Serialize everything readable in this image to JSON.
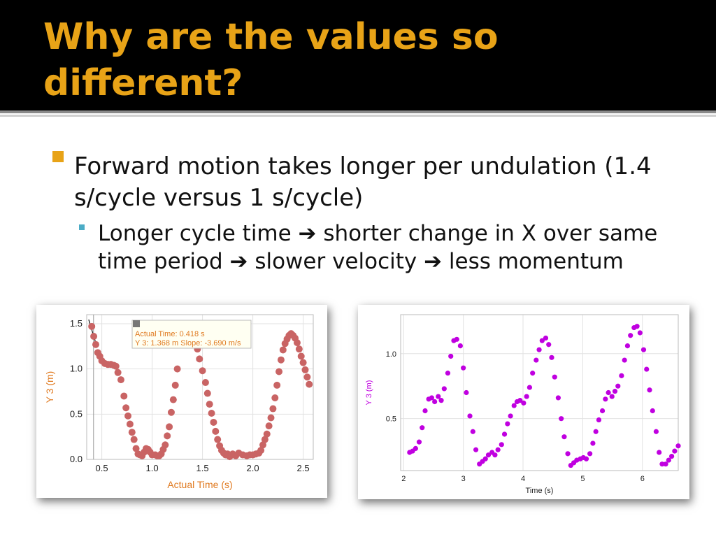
{
  "slide": {
    "title": "Why are the values so different?",
    "bullets": [
      {
        "text": "Forward motion takes longer per undulation (1.4 s/cycle versus 1 s/cycle)"
      },
      {
        "text": "Longer cycle time ➔ shorter change in X over same time period ➔ slower velocity ➔ less momentum"
      }
    ],
    "colors": {
      "title": "#e8a317",
      "title_bar": "#000000",
      "bullet_square": "#e8a317",
      "bullet_small": "#4bacc6"
    }
  },
  "chart_data": [
    {
      "type": "scatter",
      "xlabel": "Actual Time (s)",
      "ylabel": "Y 3 (m)",
      "xlim": [
        0.35,
        2.6
      ],
      "ylim": [
        0.0,
        1.6
      ],
      "xticks": [
        "0.5",
        "1.0",
        "1.5",
        "2.0",
        "2.5"
      ],
      "yticks": [
        "0.0",
        "0.5",
        "1.0",
        "1.5"
      ],
      "grid": true,
      "color": "#c96464",
      "tooltip": {
        "line1": "Actual Time: 0.418 s",
        "line2": "Y 3: 1.368 m   Slope: -3.690 m/s",
        "color": "#e07a20"
      },
      "tangent_line": {
        "x": 0.418,
        "y": 1.368,
        "slope": -3.69
      },
      "x": [
        0.4,
        0.42,
        0.44,
        0.46,
        0.48,
        0.5,
        0.53,
        0.56,
        0.59,
        0.62,
        0.64,
        0.66,
        0.69,
        0.72,
        0.74,
        0.76,
        0.78,
        0.8,
        0.82,
        0.84,
        0.86,
        0.88,
        0.9,
        0.92,
        0.94,
        0.96,
        0.98,
        1.0,
        1.03,
        1.05,
        1.07,
        1.09,
        1.11,
        1.13,
        1.15,
        1.17,
        1.19,
        1.21,
        1.23,
        1.25,
        1.4,
        1.42,
        1.45,
        1.47,
        1.5,
        1.53,
        1.55,
        1.57,
        1.59,
        1.61,
        1.63,
        1.65,
        1.67,
        1.69,
        1.71,
        1.73,
        1.75,
        1.77,
        1.8,
        1.83,
        1.86,
        1.9,
        1.94,
        1.97,
        2.0,
        2.03,
        2.06,
        2.08,
        2.1,
        2.12,
        2.14,
        2.16,
        2.18,
        2.2,
        2.22,
        2.24,
        2.26,
        2.28,
        2.3,
        2.32,
        2.34,
        2.36,
        2.38,
        2.4,
        2.42,
        2.44,
        2.46,
        2.48,
        2.5,
        2.52,
        2.54,
        2.56
      ],
      "y": [
        1.47,
        1.36,
        1.27,
        1.18,
        1.14,
        1.09,
        1.06,
        1.05,
        1.05,
        1.04,
        1.03,
        0.96,
        0.88,
        0.7,
        0.57,
        0.48,
        0.39,
        0.3,
        0.22,
        0.12,
        0.06,
        0.05,
        0.04,
        0.08,
        0.12,
        0.11,
        0.08,
        0.05,
        0.05,
        0.04,
        0.04,
        0.06,
        0.11,
        0.16,
        0.26,
        0.36,
        0.52,
        0.66,
        0.82,
        1.0,
        1.35,
        1.28,
        1.22,
        1.11,
        0.98,
        0.85,
        0.73,
        0.61,
        0.51,
        0.41,
        0.31,
        0.22,
        0.15,
        0.1,
        0.07,
        0.05,
        0.06,
        0.03,
        0.06,
        0.04,
        0.07,
        0.05,
        0.04,
        0.05,
        0.05,
        0.06,
        0.07,
        0.1,
        0.16,
        0.22,
        0.28,
        0.37,
        0.46,
        0.56,
        0.68,
        0.82,
        0.97,
        1.1,
        1.21,
        1.28,
        1.33,
        1.37,
        1.39,
        1.37,
        1.34,
        1.29,
        1.22,
        1.14,
        1.07,
        0.99,
        0.91,
        0.83
      ]
    },
    {
      "type": "scatter",
      "xlabel": "Time (s)",
      "ylabel": "Y 3 (m)",
      "xlim": [
        1.95,
        6.6
      ],
      "ylim": [
        0.1,
        1.3
      ],
      "xticks": [
        "2",
        "3",
        "4",
        "5",
        "6"
      ],
      "yticks": [
        "0.5",
        "1.0"
      ],
      "grid": true,
      "color": "#c000e0",
      "x": [
        2.1,
        2.15,
        2.2,
        2.26,
        2.31,
        2.36,
        2.42,
        2.47,
        2.52,
        2.58,
        2.63,
        2.68,
        2.74,
        2.79,
        2.84,
        2.89,
        2.95,
        3.0,
        3.05,
        3.11,
        3.16,
        3.21,
        3.27,
        3.32,
        3.37,
        3.42,
        3.48,
        3.53,
        3.58,
        3.64,
        3.69,
        3.74,
        3.79,
        3.85,
        3.9,
        3.95,
        4.01,
        4.06,
        4.11,
        4.16,
        4.22,
        4.27,
        4.32,
        4.38,
        4.43,
        4.48,
        4.53,
        4.59,
        4.64,
        4.69,
        4.75,
        4.8,
        4.85,
        4.9,
        4.96,
        5.01,
        5.06,
        5.12,
        5.17,
        5.22,
        5.27,
        5.33,
        5.38,
        5.43,
        5.49,
        5.54,
        5.59,
        5.65,
        5.7,
        5.75,
        5.8,
        5.86,
        5.91,
        5.96,
        6.02,
        6.07,
        6.12,
        6.17,
        6.23,
        6.28,
        6.33,
        6.39,
        6.44,
        6.49,
        6.54,
        6.6
      ],
      "y": [
        0.24,
        0.25,
        0.27,
        0.32,
        0.43,
        0.56,
        0.65,
        0.66,
        0.63,
        0.67,
        0.64,
        0.73,
        0.85,
        0.98,
        1.1,
        1.11,
        1.06,
        0.89,
        0.7,
        0.52,
        0.4,
        0.26,
        0.15,
        0.17,
        0.19,
        0.22,
        0.24,
        0.22,
        0.26,
        0.3,
        0.38,
        0.46,
        0.52,
        0.6,
        0.63,
        0.64,
        0.62,
        0.67,
        0.74,
        0.85,
        0.95,
        1.03,
        1.1,
        1.12,
        1.07,
        0.97,
        0.82,
        0.66,
        0.5,
        0.36,
        0.23,
        0.14,
        0.16,
        0.18,
        0.19,
        0.2,
        0.19,
        0.23,
        0.31,
        0.4,
        0.49,
        0.56,
        0.65,
        0.7,
        0.67,
        0.71,
        0.75,
        0.83,
        0.95,
        1.06,
        1.14,
        1.2,
        1.21,
        1.16,
        1.03,
        0.88,
        0.72,
        0.56,
        0.4,
        0.24,
        0.15,
        0.15,
        0.18,
        0.21,
        0.25,
        0.29
      ]
    }
  ]
}
